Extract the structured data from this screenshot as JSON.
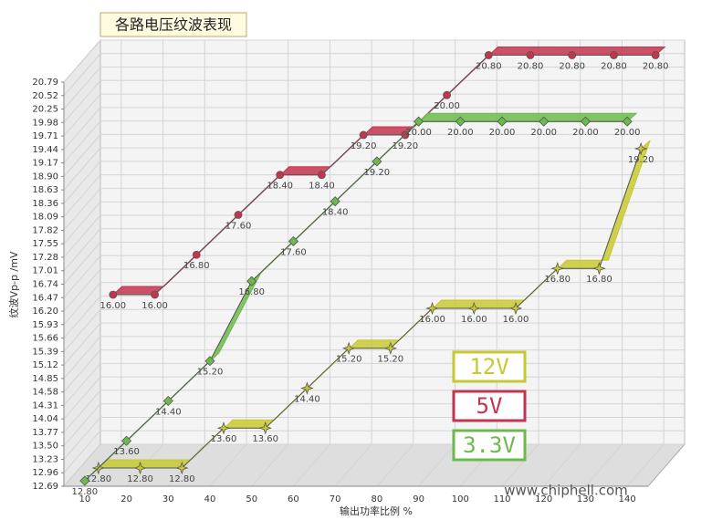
{
  "chart_data": {
    "type": "line3d",
    "title": "各路电压纹波表现",
    "x_label": "输出功率比例 %",
    "y_label": "纹波Vp-p /mV",
    "watermark": "www.chiphell.com",
    "x": [
      10,
      20,
      30,
      40,
      50,
      60,
      70,
      80,
      90,
      100,
      110,
      120,
      130,
      140
    ],
    "xlim": [
      5,
      145
    ],
    "xticks": [
      10,
      20,
      30,
      40,
      50,
      60,
      70,
      80,
      90,
      100,
      110,
      120,
      130,
      140
    ],
    "ylim": [
      12.69,
      20.79
    ],
    "yticks": [
      12.69,
      12.96,
      13.23,
      {
        "value": 13.5,
        "label": "13.50"
      },
      13.77,
      14.04,
      14.31,
      14.58,
      14.85,
      15.12,
      15.39,
      15.66,
      15.93,
      {
        "value": 16.2,
        "label": "16.20"
      },
      16.47,
      16.74,
      17.01,
      17.28,
      17.55,
      17.82,
      18.09,
      18.36,
      18.63,
      {
        "value": 18.9,
        "label": "18.90"
      },
      19.17,
      19.44,
      19.71,
      19.98,
      20.25,
      20.52,
      20.79
    ],
    "grid": true,
    "series": [
      {
        "name": "12V",
        "color": "#c8c832",
        "marker": "star",
        "values": [
          12.8,
          12.8,
          12.8,
          13.6,
          13.6,
          14.4,
          15.2,
          15.2,
          16,
          16,
          16,
          16.8,
          16.8,
          19.2
        ],
        "value_labels": [
          "12.80",
          "12.80",
          "12.80",
          "13.60",
          "13.60",
          "14.40",
          "15.20",
          "15.20",
          "16.00",
          "16.00",
          "16.00",
          "16.80",
          "16.80",
          "19.20"
        ]
      },
      {
        "name": "5V",
        "color": "#c3344e",
        "marker": "circle",
        "values": [
          16,
          16,
          16.8,
          17.6,
          18.4,
          18.4,
          19.2,
          19.2,
          20,
          20.8,
          20.8,
          20.8,
          20.8,
          20.8
        ],
        "value_labels": [
          "16.00",
          "16.00",
          "16.80",
          "17.60",
          "18.40",
          "18.40",
          "19.20",
          "19.20",
          "20.00",
          "20.80",
          "20.80",
          "20.80",
          "20.80",
          "20.80"
        ]
      },
      {
        "name": "3.3V",
        "color": "#6cba4c",
        "marker": "diamond",
        "values": [
          12.8,
          13.6,
          14.4,
          15.2,
          16.8,
          17.6,
          18.4,
          19.2,
          20,
          20,
          20,
          20,
          20,
          20
        ],
        "value_labels": [
          "12.80",
          "13.60",
          "14.40",
          "15.20",
          "16.80",
          "17.60",
          "18.40",
          "19.20",
          "20.00",
          "20.00",
          "20.00",
          "20.00",
          "20.00",
          "20.00"
        ]
      }
    ]
  }
}
